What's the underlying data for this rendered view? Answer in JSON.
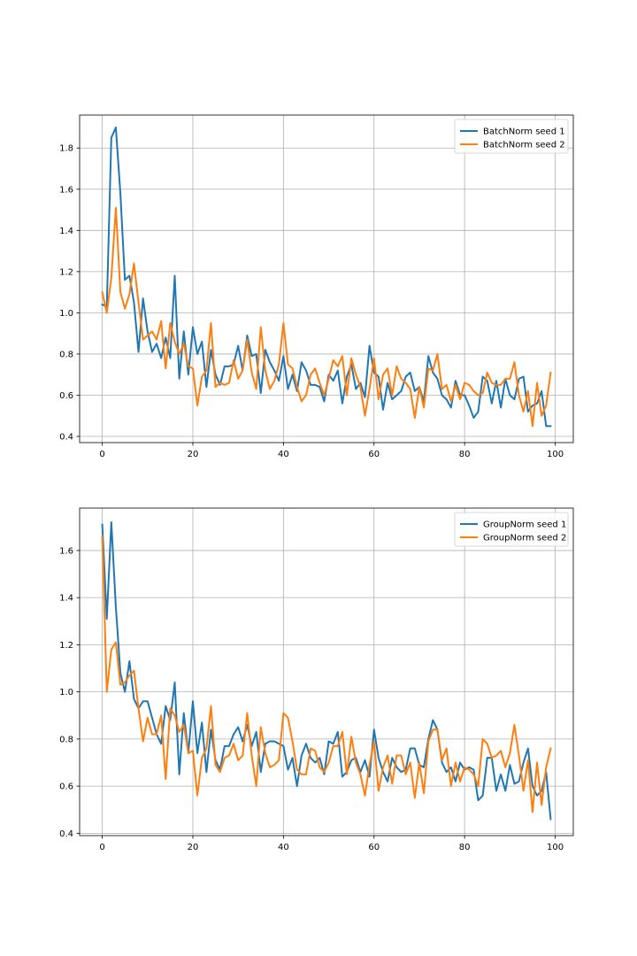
{
  "chart_data": [
    {
      "type": "line",
      "title": "",
      "xlabel": "",
      "ylabel": "",
      "xlim": [
        -5,
        104
      ],
      "ylim": [
        0.37,
        1.96
      ],
      "xticks": [
        0,
        20,
        40,
        60,
        80,
        100
      ],
      "yticks": [
        0.4,
        0.6,
        0.8,
        1.0,
        1.2,
        1.4,
        1.6,
        1.8
      ],
      "grid": true,
      "legend_position": "top-right",
      "series": [
        {
          "name": "BatchNorm seed 1",
          "color": "#1f77b4",
          "values": [
            1.04,
            1.03,
            1.85,
            1.9,
            1.58,
            1.16,
            1.18,
            1.05,
            0.81,
            1.07,
            0.91,
            0.81,
            0.85,
            0.78,
            0.88,
            0.78,
            1.18,
            0.68,
            0.91,
            0.7,
            0.93,
            0.8,
            0.86,
            0.64,
            0.82,
            0.7,
            0.65,
            0.74,
            0.74,
            0.75,
            0.84,
            0.72,
            0.89,
            0.79,
            0.8,
            0.61,
            0.82,
            0.76,
            0.72,
            0.67,
            0.79,
            0.63,
            0.7,
            0.62,
            0.76,
            0.72,
            0.65,
            0.65,
            0.64,
            0.57,
            0.7,
            0.67,
            0.72,
            0.56,
            0.69,
            0.75,
            0.63,
            0.66,
            0.59,
            0.84,
            0.71,
            0.69,
            0.53,
            0.66,
            0.58,
            0.6,
            0.62,
            0.69,
            0.71,
            0.62,
            0.64,
            0.57,
            0.79,
            0.71,
            0.68,
            0.6,
            0.58,
            0.54,
            0.67,
            0.6,
            0.6,
            0.55,
            0.49,
            0.52,
            0.69,
            0.67,
            0.56,
            0.67,
            0.54,
            0.68,
            0.6,
            0.58,
            0.68,
            0.69,
            0.52,
            0.55,
            0.56,
            0.62,
            0.45,
            0.45
          ]
        },
        {
          "name": "BatchNorm seed 2",
          "color": "#ff7f0e",
          "values": [
            1.1,
            1.0,
            1.17,
            1.51,
            1.1,
            1.02,
            1.09,
            1.24,
            1.05,
            0.87,
            0.89,
            0.91,
            0.87,
            0.96,
            0.73,
            0.95,
            0.86,
            0.8,
            0.85,
            0.74,
            0.73,
            0.55,
            0.69,
            0.72,
            0.95,
            0.64,
            0.66,
            0.65,
            0.66,
            0.77,
            0.68,
            0.72,
            0.87,
            0.71,
            0.63,
            0.93,
            0.72,
            0.63,
            0.67,
            0.75,
            0.95,
            0.75,
            0.73,
            0.64,
            0.57,
            0.6,
            0.7,
            0.73,
            0.66,
            0.6,
            0.68,
            0.77,
            0.74,
            0.79,
            0.6,
            0.78,
            0.7,
            0.64,
            0.5,
            0.63,
            0.78,
            0.58,
            0.7,
            0.73,
            0.6,
            0.74,
            0.68,
            0.66,
            0.63,
            0.49,
            0.64,
            0.54,
            0.73,
            0.72,
            0.8,
            0.63,
            0.65,
            0.57,
            0.65,
            0.58,
            0.66,
            0.65,
            0.62,
            0.6,
            0.61,
            0.71,
            0.66,
            0.65,
            0.65,
            0.68,
            0.68,
            0.76,
            0.6,
            0.52,
            0.62,
            0.45,
            0.66,
            0.5,
            0.55,
            0.71
          ]
        }
      ]
    },
    {
      "type": "line",
      "title": "",
      "xlabel": "",
      "ylabel": "",
      "xlim": [
        -5,
        104
      ],
      "ylim": [
        0.39,
        1.78
      ],
      "xticks": [
        0,
        20,
        40,
        60,
        80,
        100
      ],
      "yticks": [
        0.4,
        0.6,
        0.8,
        1.0,
        1.2,
        1.4,
        1.6
      ],
      "grid": true,
      "legend_position": "top-right",
      "series": [
        {
          "name": "GroupNorm seed 1",
          "color": "#1f77b4",
          "values": [
            1.71,
            1.31,
            1.72,
            1.36,
            1.08,
            1.0,
            1.13,
            0.97,
            0.93,
            0.96,
            0.96,
            0.89,
            0.82,
            0.78,
            0.94,
            0.88,
            1.04,
            0.65,
            0.91,
            0.74,
            0.96,
            0.74,
            0.87,
            0.66,
            0.84,
            0.71,
            0.67,
            0.77,
            0.77,
            0.82,
            0.85,
            0.79,
            0.86,
            0.77,
            0.83,
            0.66,
            0.78,
            0.79,
            0.79,
            0.78,
            0.77,
            0.67,
            0.72,
            0.6,
            0.73,
            0.78,
            0.72,
            0.7,
            0.72,
            0.65,
            0.79,
            0.78,
            0.83,
            0.64,
            0.66,
            0.71,
            0.72,
            0.66,
            0.71,
            0.64,
            0.84,
            0.72,
            0.66,
            0.62,
            0.72,
            0.68,
            0.66,
            0.67,
            0.76,
            0.76,
            0.69,
            0.68,
            0.8,
            0.88,
            0.84,
            0.7,
            0.66,
            0.68,
            0.62,
            0.7,
            0.67,
            0.68,
            0.67,
            0.54,
            0.56,
            0.72,
            0.72,
            0.58,
            0.65,
            0.58,
            0.69,
            0.61,
            0.62,
            0.7,
            0.76,
            0.6,
            0.56,
            0.58,
            0.66,
            0.46
          ]
        },
        {
          "name": "GroupNorm seed 2",
          "color": "#ff7f0e",
          "values": [
            1.66,
            1.0,
            1.18,
            1.21,
            1.03,
            1.04,
            1.07,
            1.09,
            0.93,
            0.79,
            0.89,
            0.82,
            0.82,
            0.9,
            0.63,
            0.93,
            0.9,
            0.83,
            0.86,
            0.74,
            0.75,
            0.56,
            0.72,
            0.76,
            0.94,
            0.69,
            0.66,
            0.72,
            0.73,
            0.78,
            0.71,
            0.73,
            0.91,
            0.73,
            0.6,
            0.85,
            0.74,
            0.68,
            0.69,
            0.71,
            0.91,
            0.89,
            0.79,
            0.67,
            0.65,
            0.65,
            0.76,
            0.75,
            0.68,
            0.66,
            0.7,
            0.77,
            0.77,
            0.83,
            0.65,
            0.81,
            0.7,
            0.65,
            0.56,
            0.69,
            0.79,
            0.58,
            0.68,
            0.73,
            0.61,
            0.73,
            0.73,
            0.65,
            0.7,
            0.55,
            0.7,
            0.57,
            0.79,
            0.84,
            0.84,
            0.71,
            0.76,
            0.6,
            0.7,
            0.62,
            0.68,
            0.67,
            0.65,
            0.6,
            0.8,
            0.78,
            0.72,
            0.73,
            0.75,
            0.68,
            0.74,
            0.86,
            0.73,
            0.58,
            0.71,
            0.49,
            0.7,
            0.52,
            0.68,
            0.76
          ]
        }
      ]
    }
  ]
}
